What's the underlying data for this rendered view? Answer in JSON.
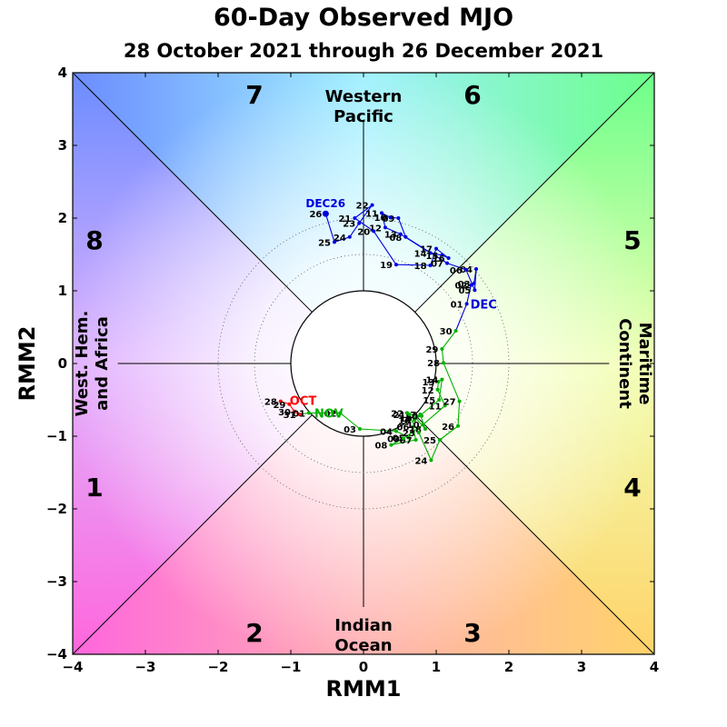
{
  "title": "60-Day Observed MJO",
  "subtitle": "28 October 2021 through 26 December 2021",
  "chart_data": {
    "type": "scatter",
    "title": "60-Day Observed MJO",
    "subtitle": "28 October 2021 through 26 December 2021",
    "xlabel": "RMM1",
    "ylabel": "RMM2",
    "xlim": [
      -4,
      4
    ],
    "ylim": [
      -4,
      4
    ],
    "xticks": [
      -4,
      -3,
      -2,
      -1,
      0,
      1,
      2,
      3,
      4
    ],
    "yticks": [
      -4,
      -3,
      -2,
      -1,
      0,
      1,
      2,
      3,
      4
    ],
    "tick_labels": [
      "−4",
      "−3",
      "−2",
      "−1",
      "0",
      "1",
      "2",
      "3",
      "4"
    ],
    "unit_circle_radius": 1,
    "dotted_circle_radii": [
      1.5,
      2.0
    ],
    "phases": [
      {
        "label": "1",
        "x": -3.7,
        "y": -1.7
      },
      {
        "label": "2",
        "x": -1.5,
        "y": -3.7
      },
      {
        "label": "3",
        "x": 1.5,
        "y": -3.7
      },
      {
        "label": "4",
        "x": 3.7,
        "y": -1.7
      },
      {
        "label": "5",
        "x": 3.7,
        "y": 1.7
      },
      {
        "label": "6",
        "x": 1.5,
        "y": 3.7
      },
      {
        "label": "7",
        "x": -1.5,
        "y": 3.7
      },
      {
        "label": "8",
        "x": -3.7,
        "y": 1.7
      }
    ],
    "regions": {
      "top": [
        "Western",
        "Pacific"
      ],
      "bottom": [
        "Indian",
        "Ocean"
      ],
      "left": [
        "West. Hem.",
        "and Africa"
      ],
      "right": [
        "Maritime",
        "Continent"
      ]
    },
    "series": [
      {
        "name": "OCT",
        "color": "#ff0000",
        "month_label": "OCT",
        "points": [
          {
            "label": "28",
            "x": -1.14,
            "y": -0.52
          },
          {
            "label": "29",
            "x": -1.02,
            "y": -0.56
          },
          {
            "label": "30",
            "x": -0.95,
            "y": -0.66
          },
          {
            "label": "31",
            "x": -0.88,
            "y": -0.7
          }
        ]
      },
      {
        "name": "NOV",
        "color": "#00b000",
        "month_label": "NOV",
        "points": [
          {
            "label": "01",
            "x": -0.75,
            "y": -0.68
          },
          {
            "label": "02",
            "x": -0.32,
            "y": -0.68
          },
          {
            "label": "03",
            "x": -0.05,
            "y": -0.9
          },
          {
            "label": "04",
            "x": 0.45,
            "y": -0.93
          },
          {
            "label": "05",
            "x": 0.62,
            "y": -1.02
          },
          {
            "label": "06",
            "x": 0.68,
            "y": -0.87
          },
          {
            "label": "07",
            "x": 0.72,
            "y": -1.05
          },
          {
            "label": "08",
            "x": 0.38,
            "y": -1.12
          },
          {
            "label": "09",
            "x": 0.55,
            "y": -1.03
          },
          {
            "label": "10",
            "x": 0.82,
            "y": -0.84
          },
          {
            "label": "11",
            "x": 1.12,
            "y": -0.58
          },
          {
            "label": "12",
            "x": 1.02,
            "y": -0.36
          },
          {
            "label": "13",
            "x": 1.03,
            "y": -0.25
          },
          {
            "label": "14",
            "x": 1.08,
            "y": -0.22
          },
          {
            "label": "15",
            "x": 1.04,
            "y": -0.5
          },
          {
            "label": "16",
            "x": 0.7,
            "y": -0.78
          },
          {
            "label": "17",
            "x": 0.78,
            "y": -0.7
          },
          {
            "label": "18",
            "x": 0.85,
            "y": -0.9
          },
          {
            "label": "19",
            "x": 0.72,
            "y": -0.75
          },
          {
            "label": "20",
            "x": 0.8,
            "y": -0.72
          },
          {
            "label": "21",
            "x": 0.63,
            "y": -0.7
          },
          {
            "label": "22",
            "x": 0.6,
            "y": -0.68
          },
          {
            "label": "23",
            "x": 0.76,
            "y": -0.95
          },
          {
            "label": "24",
            "x": 0.93,
            "y": -1.33
          },
          {
            "label": "25",
            "x": 1.05,
            "y": -1.05
          },
          {
            "label": "26",
            "x": 1.3,
            "y": -0.86
          },
          {
            "label": "27",
            "x": 1.32,
            "y": -0.52
          },
          {
            "label": "28",
            "x": 1.1,
            "y": 0.01
          },
          {
            "label": "29",
            "x": 1.08,
            "y": 0.2
          },
          {
            "label": "30",
            "x": 1.27,
            "y": 0.45
          }
        ]
      },
      {
        "name": "DEC",
        "color": "#0000e0",
        "month_label": "DEC",
        "points": [
          {
            "label": "01",
            "x": 1.42,
            "y": 0.82
          },
          {
            "label": "02",
            "x": 1.48,
            "y": 1.08
          },
          {
            "label": "03",
            "x": 1.52,
            "y": 1.1
          },
          {
            "label": "04",
            "x": 1.55,
            "y": 1.3
          },
          {
            "label": "05",
            "x": 1.53,
            "y": 1.01
          },
          {
            "label": "06",
            "x": 1.41,
            "y": 1.29
          },
          {
            "label": "07",
            "x": 1.15,
            "y": 1.38
          },
          {
            "label": "08",
            "x": 0.58,
            "y": 1.74
          },
          {
            "label": "09",
            "x": 0.48,
            "y": 2.0
          },
          {
            "label": "10",
            "x": 0.37,
            "y": 2.01
          },
          {
            "label": "11",
            "x": 0.25,
            "y": 2.07
          },
          {
            "label": "12",
            "x": 0.3,
            "y": 1.87
          },
          {
            "label": "13",
            "x": 0.51,
            "y": 1.78
          },
          {
            "label": "14",
            "x": 0.92,
            "y": 1.52
          },
          {
            "label": "15",
            "x": 1.08,
            "y": 1.49
          },
          {
            "label": "16",
            "x": 1.17,
            "y": 1.45
          },
          {
            "label": "17",
            "x": 1.0,
            "y": 1.58
          },
          {
            "label": "18",
            "x": 0.92,
            "y": 1.35
          },
          {
            "label": "19",
            "x": 0.45,
            "y": 1.36
          },
          {
            "label": "20",
            "x": 0.14,
            "y": 1.82
          },
          {
            "label": "21",
            "x": -0.12,
            "y": 2.0
          },
          {
            "label": "22",
            "x": 0.12,
            "y": 2.18
          },
          {
            "label": "23",
            "x": -0.06,
            "y": 1.93
          },
          {
            "label": "24",
            "x": -0.19,
            "y": 1.74
          },
          {
            "label": "25",
            "x": -0.4,
            "y": 1.67
          },
          {
            "label": "26",
            "x": -0.52,
            "y": 2.06
          }
        ]
      }
    ],
    "start_label": "OCT",
    "end_label": "DEC26"
  }
}
